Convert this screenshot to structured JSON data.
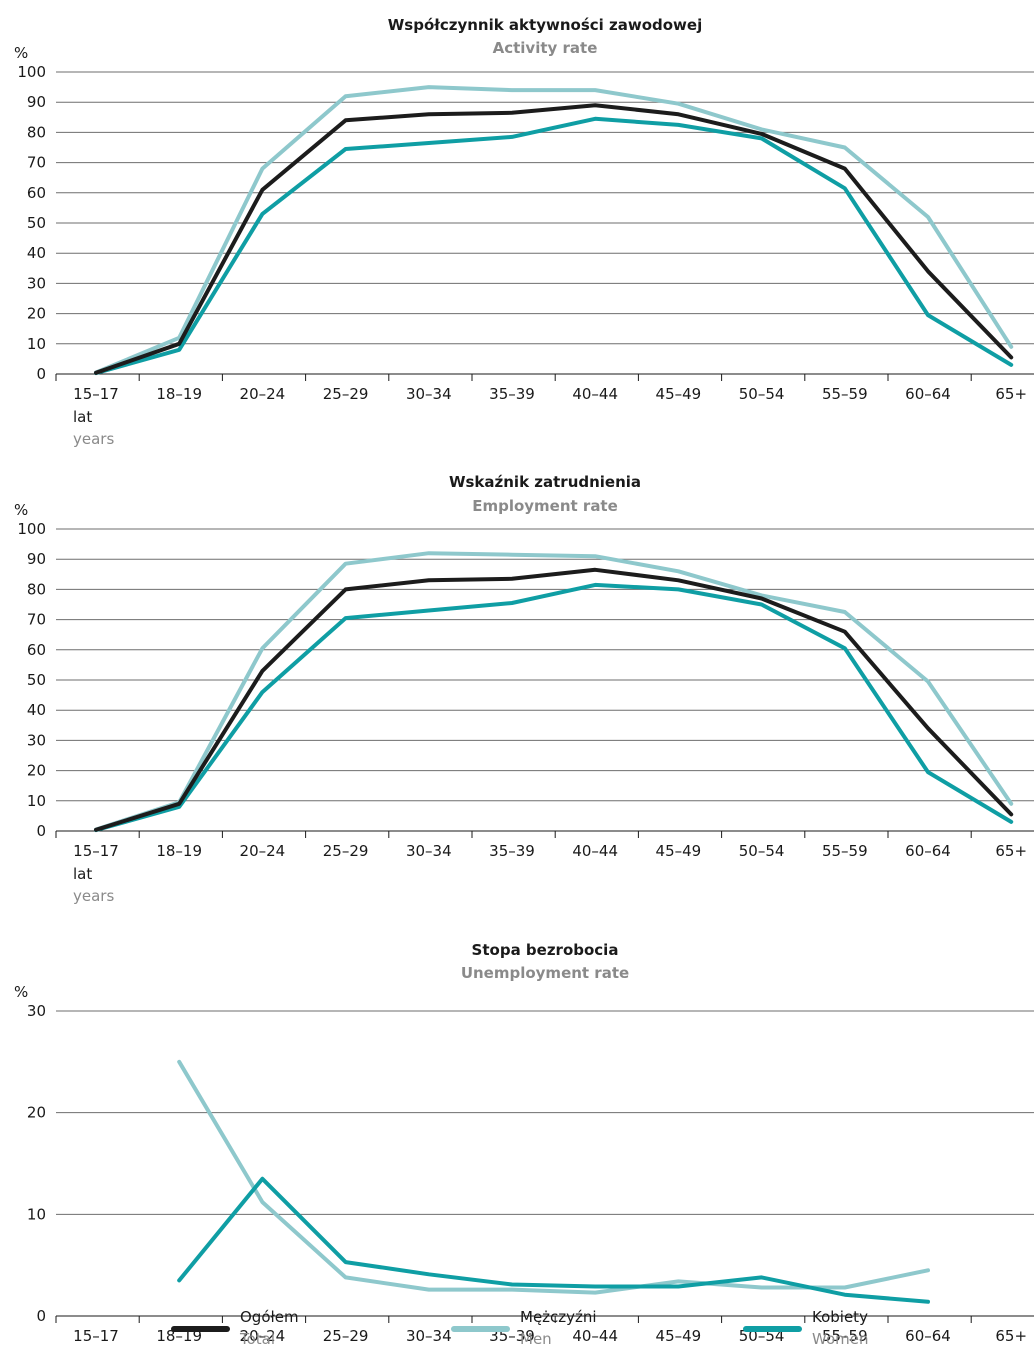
{
  "colors": {
    "total": "#1c1c1c",
    "men": "#8ec8cc",
    "women": "#0f9ea4"
  },
  "chart_data": [
    {
      "type": "line",
      "title": "Współczynnik aktywności zawodowej",
      "subtitle": "Activity rate",
      "ylabel": "%",
      "ylim": [
        0,
        100
      ],
      "yticks": [
        0,
        10,
        20,
        30,
        40,
        50,
        60,
        70,
        80,
        90,
        100
      ],
      "categories": [
        "15–17",
        "18–19",
        "20–24",
        "25–29",
        "30–34",
        "35–39",
        "40–44",
        "45–49",
        "50–54",
        "55–59",
        "60–64",
        "65+"
      ],
      "category_note": {
        "pl": "lat",
        "en": "years"
      },
      "series": [
        {
          "name": "Mężczyźni",
          "key": "men",
          "values": [
            0.5,
            12,
            68,
            92,
            95,
            94,
            94,
            89.5,
            81,
            75,
            52,
            9
          ]
        },
        {
          "name": "Kobiety",
          "key": "women",
          "values": [
            0.3,
            8,
            53,
            74.5,
            76.5,
            78.5,
            84.5,
            82.5,
            78,
            61.5,
            19.5,
            3
          ]
        },
        {
          "name": "Ogółem",
          "key": "total",
          "values": [
            0.4,
            10,
            61,
            84,
            86,
            86.5,
            89,
            86,
            79.5,
            68,
            34,
            5.5
          ]
        }
      ]
    },
    {
      "type": "line",
      "title": "Wskaźnik zatrudnienia",
      "subtitle": "Employment rate",
      "ylabel": "%",
      "ylim": [
        0,
        100
      ],
      "yticks": [
        0,
        10,
        20,
        30,
        40,
        50,
        60,
        70,
        80,
        90,
        100
      ],
      "categories": [
        "15–17",
        "18–19",
        "20–24",
        "25–29",
        "30–34",
        "35–39",
        "40–44",
        "45–49",
        "50–54",
        "55–59",
        "60–64",
        "65+"
      ],
      "category_note": {
        "pl": "lat",
        "en": "years"
      },
      "series": [
        {
          "name": "Mężczyźni",
          "key": "men",
          "values": [
            0.5,
            9.5,
            60.5,
            88.5,
            92,
            91.5,
            91,
            86,
            78,
            72.5,
            49.5,
            9
          ]
        },
        {
          "name": "Kobiety",
          "key": "women",
          "values": [
            0.3,
            8,
            46,
            70.5,
            73,
            75.5,
            81.5,
            80,
            75,
            60.5,
            19.5,
            3
          ]
        },
        {
          "name": "Ogółem",
          "key": "total",
          "values": [
            0.4,
            9,
            53,
            80,
            83,
            83.5,
            86.5,
            83,
            77,
            66,
            34,
            5.5
          ]
        }
      ]
    },
    {
      "type": "line",
      "title": "Stopa bezrobocia",
      "subtitle": "Unemployment rate",
      "ylabel": "%",
      "ylim": [
        0,
        30
      ],
      "yticks": [
        0,
        10,
        20,
        30
      ],
      "categories": [
        "15–17",
        "18–19",
        "20–24",
        "25–29",
        "30–34",
        "35–39",
        "40–44",
        "45–49",
        "50–54",
        "55–59",
        "60–64",
        "65+"
      ],
      "category_note": {
        "pl": "lat",
        "en": "years"
      },
      "series": [
        {
          "name": "Mężczyźni",
          "key": "men",
          "values": [
            null,
            25,
            11.2,
            3.8,
            2.6,
            2.6,
            2.3,
            3.4,
            2.8,
            2.8,
            4.5,
            null
          ]
        },
        {
          "name": "Kobiety",
          "key": "women",
          "values": [
            null,
            3.5,
            13.5,
            5.3,
            4.1,
            3.1,
            2.9,
            2.9,
            3.8,
            2.1,
            1.4,
            null
          ]
        }
      ]
    }
  ],
  "legend": [
    {
      "key": "total",
      "pl": "Ogółem",
      "en": "Total"
    },
    {
      "key": "men",
      "pl": "Mężczyźni",
      "en": "Men"
    },
    {
      "key": "women",
      "pl": "Kobiety",
      "en": "Women"
    }
  ]
}
